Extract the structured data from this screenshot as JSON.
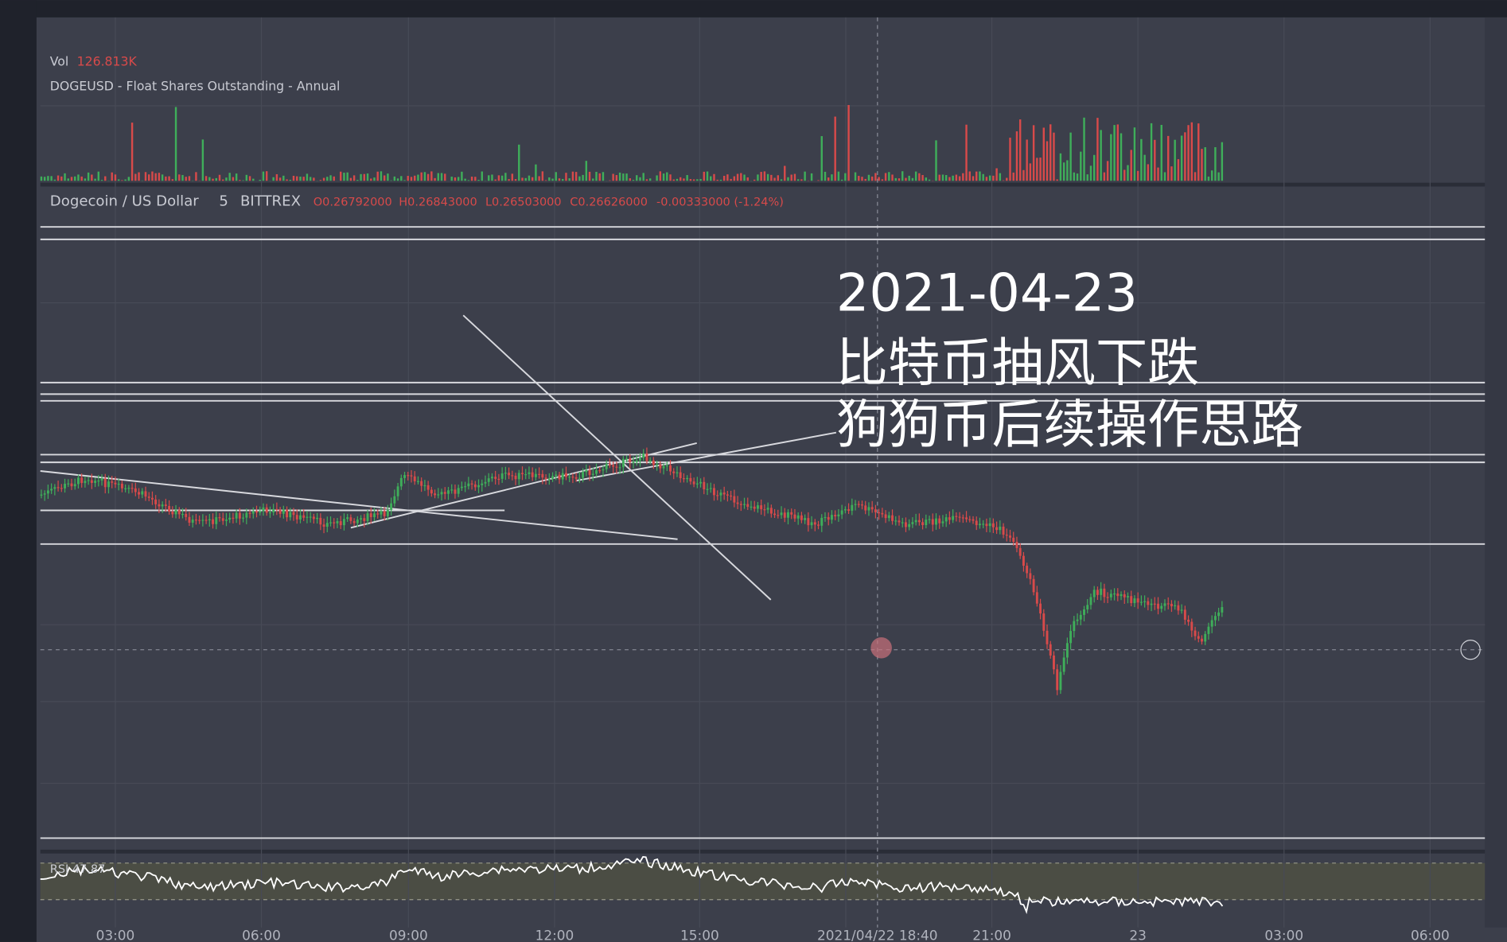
{
  "volume_pane": {
    "label": "Vol",
    "value": "126.813K",
    "indicator": "DOGEUSD - Float Shares Outstanding - Annual"
  },
  "main_pane": {
    "symbol": "Dogecoin / US Dollar",
    "interval": "5",
    "exchange": "BITTREX",
    "open": "O0.26792000",
    "high": "H0.26843000",
    "low": "L0.26503000",
    "close": "C0.26626000",
    "change": "-0.00333000 (-1.24%)"
  },
  "overlay": {
    "date": "2021-04-23",
    "line1": "比特币抽风下跌",
    "line2": "狗狗币后续操作思路"
  },
  "rsi_pane": {
    "label": "RSI 47.87"
  },
  "time_axis": [
    "03:00",
    "06:00",
    "09:00",
    "12:00",
    "15:00",
    "2021/04/22  18:40",
    "21:00",
    "23",
    "03:00",
    "06:00"
  ]
}
